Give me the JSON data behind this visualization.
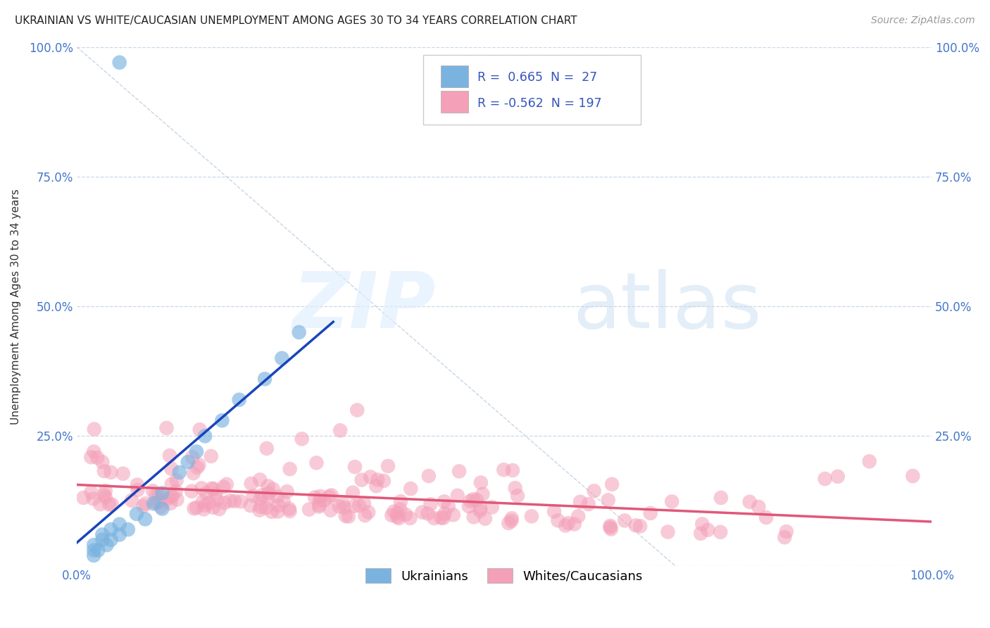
{
  "title": "UKRAINIAN VS WHITE/CAUCASIAN UNEMPLOYMENT AMONG AGES 30 TO 34 YEARS CORRELATION CHART",
  "source": "Source: ZipAtlas.com",
  "ylabel": "Unemployment Among Ages 30 to 34 years",
  "xlabel": "",
  "xlim": [
    0,
    1
  ],
  "ylim": [
    0,
    1
  ],
  "x_ticks": [
    0,
    1
  ],
  "x_tick_labels": [
    "0.0%",
    "100.0%"
  ],
  "y_tick_labels": [
    "",
    "25.0%",
    "50.0%",
    "75.0%",
    "100.0%"
  ],
  "y_ticks": [
    0,
    0.25,
    0.5,
    0.75,
    1.0
  ],
  "ukrainian_r": 0.665,
  "ukrainian_n": 27,
  "white_r": -0.562,
  "white_n": 197,
  "dot_color_ukrainian": "#7ab3e0",
  "dot_color_white": "#f4a0b8",
  "trend_color_ukrainian": "#1a44bb",
  "trend_color_white": "#e05878",
  "background_color": "#ffffff",
  "grid_color": "#c8d8e8",
  "title_fontsize": 11,
  "source_fontsize": 10,
  "axis_label_fontsize": 11,
  "tick_color": "#4477cc"
}
